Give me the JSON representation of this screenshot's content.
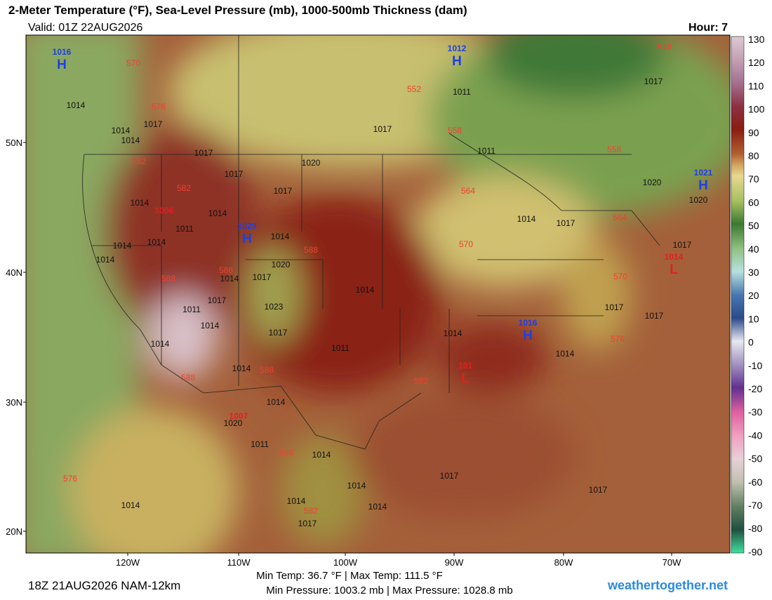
{
  "header": {
    "title": "2-Meter Temperature (°F), Sea-Level Pressure (mb), 1000-500mb Thickness (dam)",
    "valid": "Valid: 01Z 22AUG2026",
    "hour": "Hour: 7"
  },
  "colorbar": {
    "ticks": [
      "130",
      "120",
      "110",
      "100",
      "90",
      "80",
      "70",
      "60",
      "50",
      "40",
      "30",
      "20",
      "10",
      "0",
      "-10",
      "-20",
      "-30",
      "-40",
      "-50",
      "-60",
      "-70",
      "-80",
      "-90"
    ]
  },
  "latitudes": [
    "50N",
    "40N",
    "30N",
    "20N"
  ],
  "longitudes": [
    "120W",
    "110W",
    "100W",
    "90W",
    "80W",
    "70W"
  ],
  "pressure_centers": [
    {
      "letter": "H",
      "value": "1016"
    },
    {
      "letter": "H",
      "value": "1012"
    },
    {
      "letter": "H",
      "value": "1021"
    },
    {
      "letter": "H",
      "value": "1029"
    },
    {
      "letter": "H",
      "value": "1016"
    },
    {
      "letter": "L",
      "value": "1014"
    },
    {
      "letter": "L",
      "value": "101"
    }
  ],
  "low_labels": [
    "1006",
    "1007"
  ],
  "isobar_labels": [
    "1014",
    "1017",
    "1014",
    "1014",
    "1017",
    "1017",
    "1020",
    "1017",
    "1011",
    "1011",
    "1017",
    "1017",
    "1020",
    "1020",
    "1014",
    "1017",
    "1017",
    "1014",
    "1011",
    "1014",
    "1014",
    "1014",
    "1014",
    "1014",
    "1020",
    "1017",
    "1014",
    "1017",
    "1023",
    "1011",
    "1014",
    "1014",
    "1017",
    "1014",
    "1011",
    "1014",
    "1017",
    "1014",
    "1014",
    "1017",
    "1014",
    "1020",
    "1011",
    "1014",
    "1014",
    "1014",
    "1014",
    "1017",
    "1017",
    "1017",
    "1014"
  ],
  "thickness_labels": [
    "570",
    "576",
    "582",
    "582",
    "588",
    "588",
    "588",
    "552",
    "558",
    "564",
    "570",
    "558",
    "564",
    "570",
    "546",
    "576",
    "582",
    "588",
    "588",
    "588",
    "576",
    "582"
  ],
  "footer": {
    "temp_range": "Min Temp:  36.7 °F | Max Temp: 111.5 °F",
    "pressure_range": "Min Pressure: 1003.2 mb | Max Pressure: 1028.8 mb",
    "run": "18Z 21AUG2026 NAM-12km",
    "site": "weathertogether.net"
  }
}
